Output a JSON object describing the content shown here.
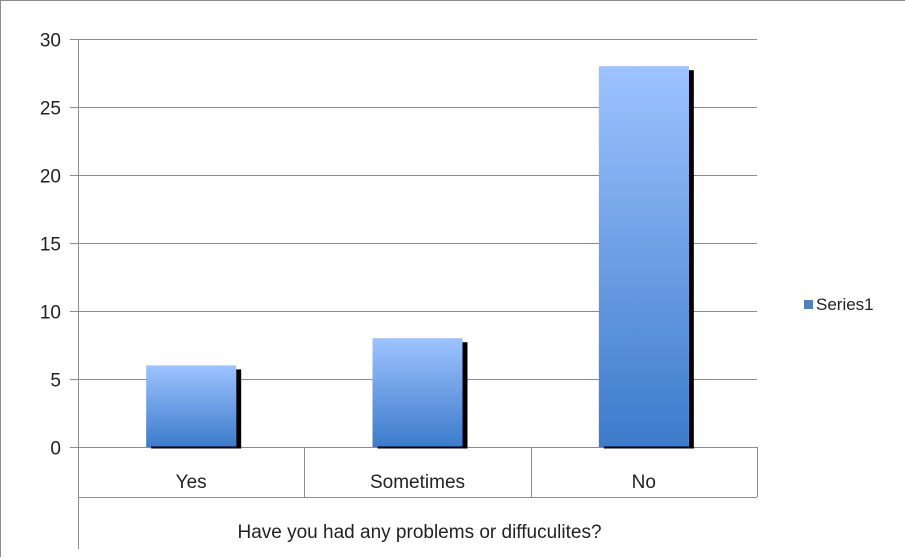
{
  "chart_data": {
    "type": "bar",
    "categories": [
      "Yes",
      "Sometimes",
      "No"
    ],
    "series": [
      {
        "name": "Series1",
        "values": [
          6,
          8,
          28
        ]
      }
    ],
    "title": "",
    "xlabel": "Have you had any problems or diffuculites?",
    "ylabel": "",
    "ylim": [
      0,
      30
    ],
    "yticks": [
      0,
      5,
      10,
      15,
      20,
      25,
      30
    ],
    "grid": true,
    "legend": "right",
    "colors": {
      "bar_light": "#9dc3ff",
      "bar_dark": "#3c7bcb",
      "bar_shadow": "#000000",
      "legend_swatch": "#4f81bd",
      "gridline": "#8c8c8c",
      "axis": "#8c8c8c"
    }
  }
}
